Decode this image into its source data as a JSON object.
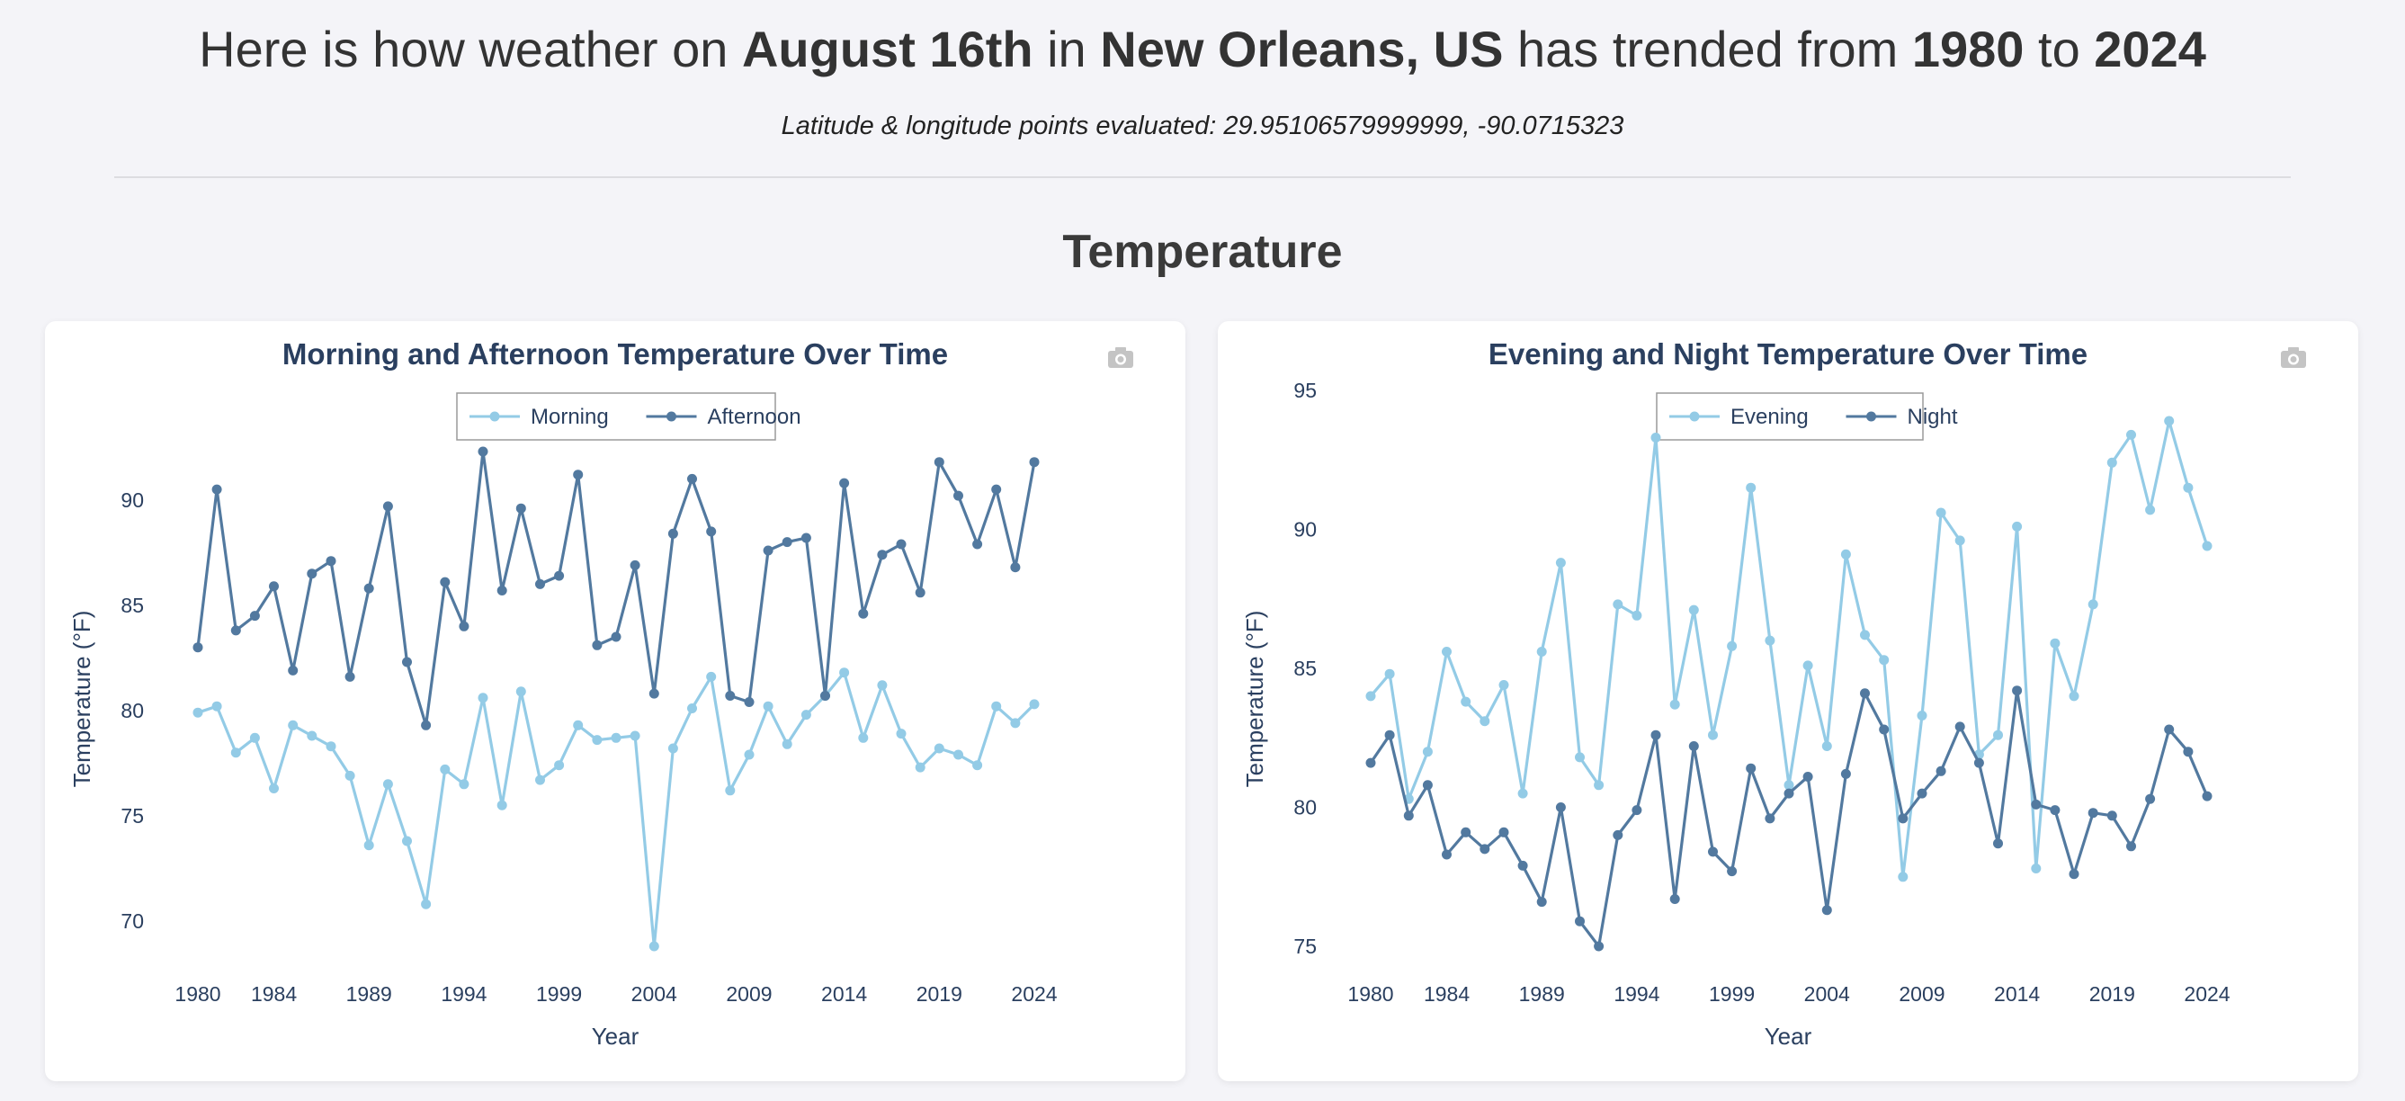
{
  "header": {
    "prefix": "Here is how weather on ",
    "date": "August 16th",
    "mid1": " in ",
    "location": "New Orleans, US",
    "mid2": " has trended from ",
    "start_year": "1980",
    "mid3": " to ",
    "end_year": "2024",
    "coords": "Latitude & longitude points evaluated: 29.95106579999999, -90.0715323"
  },
  "section_title": "Temperature",
  "colors": {
    "light": "#93cbe6",
    "dark": "#52799f",
    "text": "#2a3f5f"
  },
  "icons": {
    "export": "camera-icon"
  },
  "chart_data": [
    {
      "type": "line",
      "title": "Morning and Afternoon Temperature Over Time",
      "xlabel": "Year",
      "ylabel": "Temperature (°F)",
      "x_ticks": [
        1980,
        1984,
        1989,
        1994,
        1999,
        2004,
        2009,
        2014,
        2019,
        2024
      ],
      "y_ticks": [
        70,
        75,
        80,
        85,
        90
      ],
      "xlim": [
        1980,
        2024
      ],
      "ylim": [
        68.8,
        92.3
      ],
      "legend_position": "top-center",
      "x": [
        1980,
        1981,
        1982,
        1983,
        1984,
        1985,
        1986,
        1987,
        1988,
        1989,
        1990,
        1991,
        1992,
        1993,
        1994,
        1995,
        1996,
        1997,
        1998,
        1999,
        2000,
        2001,
        2002,
        2003,
        2004,
        2005,
        2006,
        2007,
        2008,
        2009,
        2010,
        2011,
        2012,
        2013,
        2014,
        2015,
        2016,
        2017,
        2018,
        2019,
        2020,
        2021,
        2022,
        2023,
        2024
      ],
      "series": [
        {
          "name": "Morning",
          "color": "#93cbe6",
          "values": [
            79.9,
            80.2,
            78.0,
            78.7,
            76.3,
            79.3,
            78.8,
            78.3,
            76.9,
            73.6,
            76.5,
            73.8,
            70.8,
            77.2,
            76.5,
            80.6,
            75.5,
            80.9,
            76.7,
            77.4,
            79.3,
            78.6,
            78.7,
            78.8,
            68.8,
            78.2,
            80.1,
            81.6,
            76.2,
            77.9,
            80.2,
            78.4,
            79.8,
            80.7,
            81.8,
            78.7,
            81.2,
            78.9,
            77.3,
            78.2,
            77.9,
            77.4,
            80.2,
            79.4,
            80.3
          ]
        },
        {
          "name": "Afternoon",
          "color": "#52799f",
          "values": [
            83.0,
            90.5,
            83.8,
            84.5,
            85.9,
            81.9,
            86.5,
            87.1,
            81.6,
            85.8,
            89.7,
            82.3,
            79.3,
            86.1,
            84.0,
            92.3,
            85.7,
            89.6,
            86.0,
            86.4,
            91.2,
            83.1,
            83.5,
            86.9,
            80.8,
            88.4,
            91.0,
            88.5,
            80.7,
            80.4,
            87.6,
            88.0,
            88.2,
            80.7,
            90.8,
            84.6,
            87.4,
            87.9,
            85.6,
            91.8,
            90.2,
            87.9,
            90.5,
            86.8,
            91.8
          ]
        }
      ]
    },
    {
      "type": "line",
      "title": "Evening and Night Temperature Over Time",
      "xlabel": "Year",
      "ylabel": "Temperature (°F)",
      "x_ticks": [
        1980,
        1984,
        1989,
        1994,
        1999,
        2004,
        2009,
        2014,
        2019,
        2024
      ],
      "y_ticks": [
        75,
        80,
        85,
        90,
        95
      ],
      "xlim": [
        1980,
        2024
      ],
      "ylim": [
        75.0,
        93.9
      ],
      "legend_position": "top-center",
      "x": [
        1980,
        1981,
        1982,
        1983,
        1984,
        1985,
        1986,
        1987,
        1988,
        1989,
        1990,
        1991,
        1992,
        1993,
        1994,
        1995,
        1996,
        1997,
        1998,
        1999,
        2000,
        2001,
        2002,
        2003,
        2004,
        2005,
        2006,
        2007,
        2008,
        2009,
        2010,
        2011,
        2012,
        2013,
        2014,
        2015,
        2016,
        2017,
        2018,
        2019,
        2020,
        2021,
        2022,
        2023,
        2024
      ],
      "series": [
        {
          "name": "Evening",
          "color": "#93cbe6",
          "values": [
            84.0,
            84.8,
            80.3,
            82.0,
            85.6,
            83.8,
            83.1,
            84.4,
            80.5,
            85.6,
            88.8,
            81.8,
            80.8,
            87.3,
            86.9,
            93.3,
            83.7,
            87.1,
            82.6,
            85.8,
            91.5,
            86.0,
            80.8,
            85.1,
            82.2,
            89.1,
            86.2,
            85.3,
            77.5,
            83.3,
            90.6,
            89.6,
            81.9,
            82.6,
            90.1,
            77.8,
            85.9,
            84.0,
            87.3,
            92.4,
            93.4,
            90.7,
            93.9,
            91.5,
            89.4
          ]
        },
        {
          "name": "Night",
          "color": "#52799f",
          "values": [
            81.6,
            82.6,
            79.7,
            80.8,
            78.3,
            79.1,
            78.5,
            79.1,
            77.9,
            76.6,
            80.0,
            75.9,
            75.0,
            79.0,
            79.9,
            82.6,
            76.7,
            82.2,
            78.4,
            77.7,
            81.4,
            79.6,
            80.5,
            81.1,
            76.3,
            81.2,
            84.1,
            82.8,
            79.6,
            80.5,
            81.3,
            82.9,
            81.6,
            78.7,
            84.2,
            80.1,
            79.9,
            77.6,
            79.8,
            79.7,
            78.6,
            80.3,
            82.8,
            82.0,
            80.4
          ]
        }
      ]
    }
  ]
}
